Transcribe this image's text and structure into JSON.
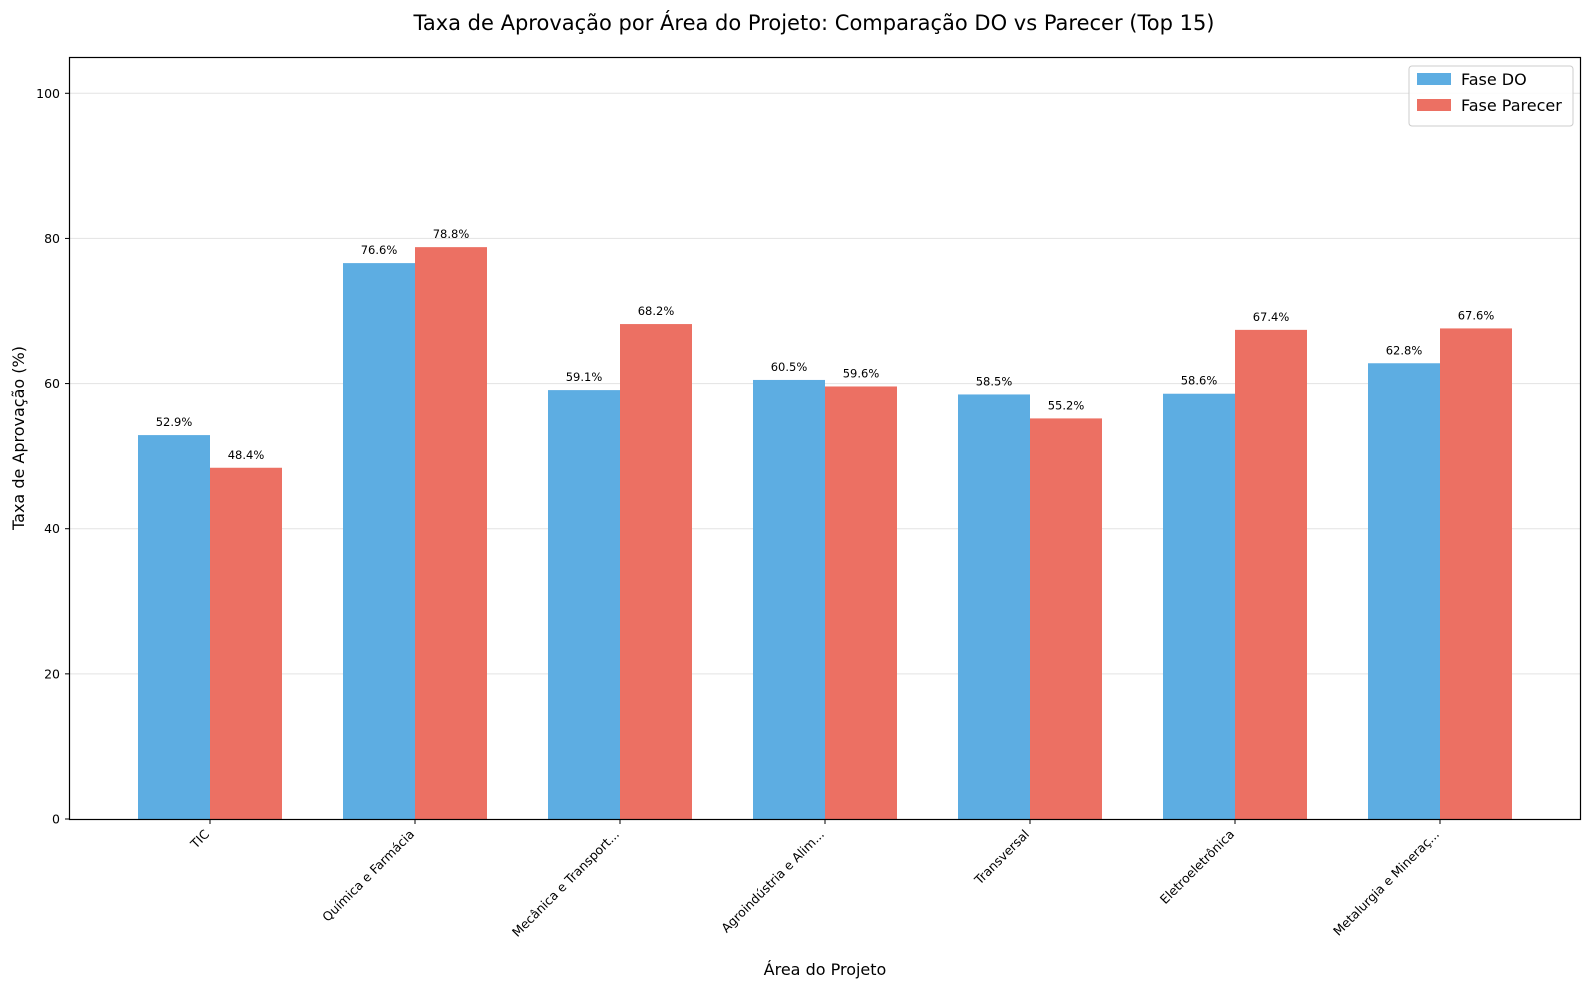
{
  "chart_data": {
    "type": "bar",
    "title": "Taxa de Aprovação por Área do Projeto: Comparação DO vs Parecer (Top 15)",
    "xlabel": "Área do Projeto",
    "ylabel": "Taxa de Aprovação (%)",
    "ylim": [
      0,
      105
    ],
    "yticks": [
      0,
      20,
      40,
      60,
      80,
      100
    ],
    "grid": "horizontal",
    "legend_position": "top-right",
    "categories": [
      "TIC",
      "Química e Farmácia",
      "Mecânica e Transport...",
      "Agroindústria e Alim...",
      "Transversal",
      "Eletroeletrônica",
      "Metalurgia e Mineraç..."
    ],
    "series": [
      {
        "name": "Fase DO",
        "color": "#5dade2",
        "values": [
          52.9,
          76.6,
          59.1,
          60.5,
          58.5,
          58.6,
          62.8
        ]
      },
      {
        "name": "Fase Parecer",
        "color": "#ec7063",
        "values": [
          48.4,
          78.8,
          68.2,
          59.6,
          55.2,
          67.4,
          67.6
        ]
      }
    ],
    "value_label_suffix": "%"
  }
}
